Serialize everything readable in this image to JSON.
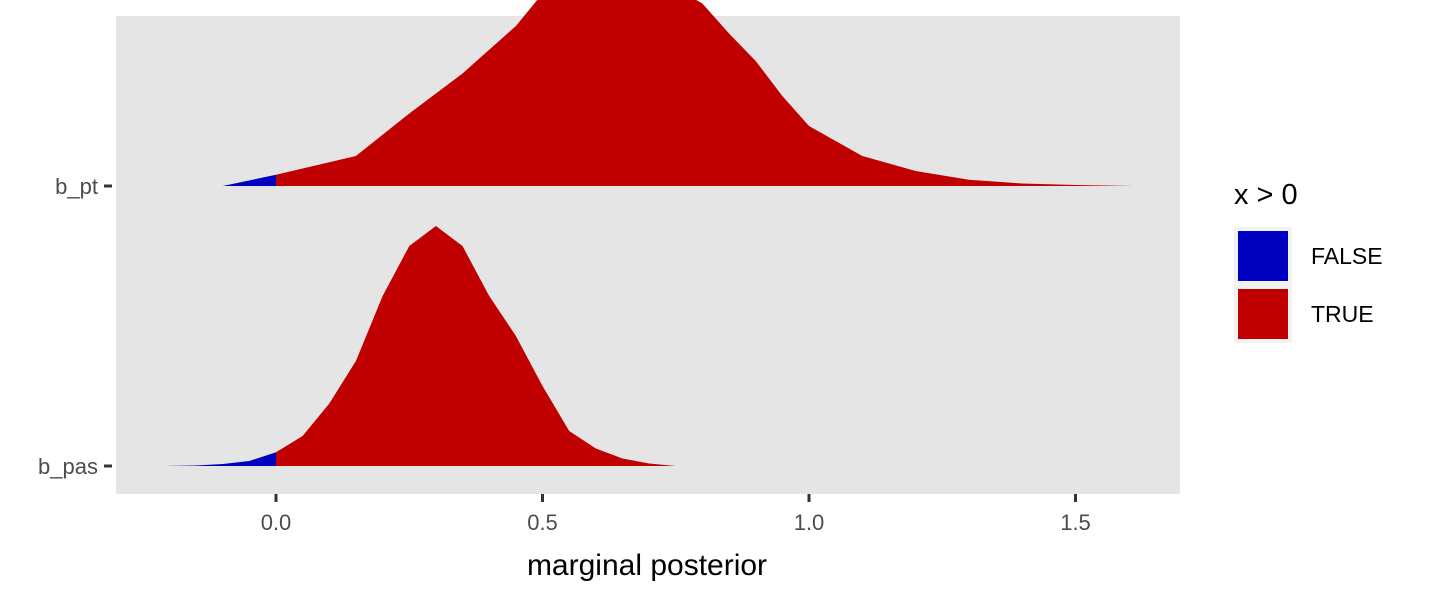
{
  "chart_data": {
    "type": "area",
    "title": "",
    "xlabel": "marginal posterior",
    "ylabel": "",
    "xlim": [
      -0.3,
      1.7
    ],
    "x_ticks": [
      0.0,
      0.5,
      1.0,
      1.5
    ],
    "x_tick_labels": [
      "0.0",
      "0.5",
      "1.0",
      "1.5"
    ],
    "categories": [
      "b_pt",
      "b_pas"
    ],
    "grid": false,
    "legend": {
      "title": "x > 0",
      "position": "right",
      "entries": [
        {
          "label": "FALSE",
          "color": "#0000C0"
        },
        {
          "label": "TRUE",
          "color": "#C00000"
        }
      ]
    },
    "fill_split_at": 0,
    "series": [
      {
        "category": "b_pt",
        "x": [
          -0.1,
          0.0,
          0.15,
          0.25,
          0.35,
          0.45,
          0.5,
          0.55,
          0.6,
          0.65,
          0.7,
          0.75,
          0.8,
          0.85,
          0.9,
          0.95,
          1.0,
          1.05,
          1.1,
          1.2,
          1.3,
          1.4,
          1.5,
          1.61
        ],
        "density": [
          0.0,
          0.045,
          0.12,
          0.29,
          0.45,
          0.64,
          0.77,
          0.9,
          0.96,
          0.95,
          0.87,
          0.79,
          0.73,
          0.61,
          0.5,
          0.36,
          0.24,
          0.18,
          0.12,
          0.06,
          0.025,
          0.01,
          0.004,
          0.0
        ]
      },
      {
        "category": "b_pas",
        "x": [
          -0.21,
          -0.15,
          -0.1,
          -0.05,
          0.0,
          0.05,
          0.1,
          0.15,
          0.2,
          0.25,
          0.3,
          0.35,
          0.4,
          0.45,
          0.5,
          0.55,
          0.6,
          0.65,
          0.7,
          0.75
        ],
        "density": [
          0.0,
          0.002,
          0.008,
          0.02,
          0.055,
          0.12,
          0.25,
          0.42,
          0.68,
          0.88,
          0.96,
          0.88,
          0.68,
          0.52,
          0.32,
          0.14,
          0.07,
          0.03,
          0.01,
          0.0
        ]
      }
    ]
  }
}
